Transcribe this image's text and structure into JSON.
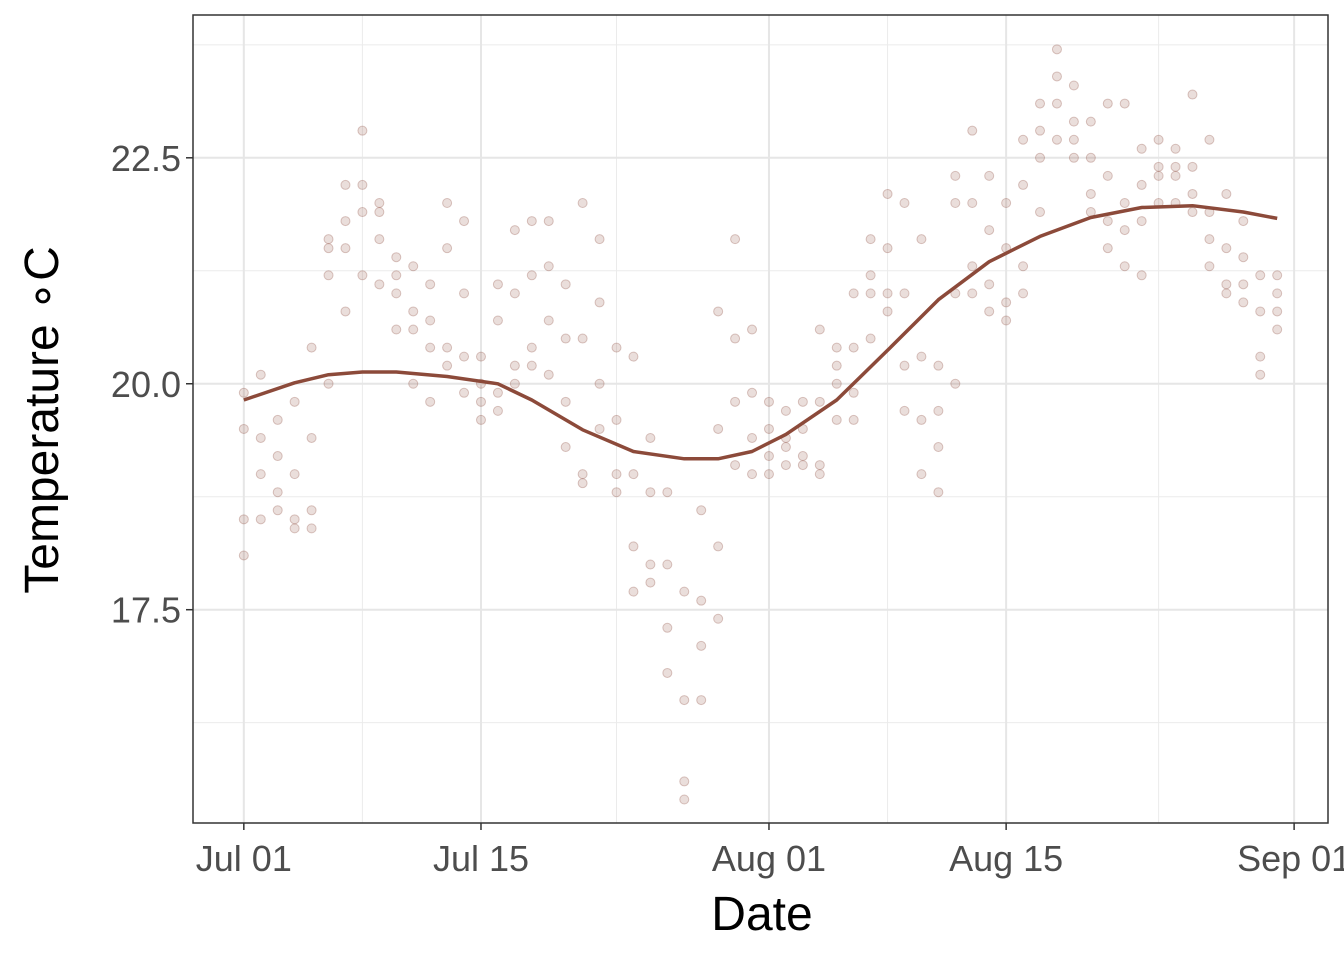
{
  "chart_data": {
    "type": "scatter",
    "x_label": "Date",
    "y_label": "Temperature ∘C",
    "x": [
      "Jul 01",
      "Jul 02",
      "Jul 03",
      "Jul 04",
      "Jul 05",
      "Jul 06",
      "Jul 07",
      "Jul 08",
      "Jul 09",
      "Jul 10",
      "Jul 11",
      "Jul 12",
      "Jul 13",
      "Jul 14",
      "Jul 15",
      "Jul 16",
      "Jul 17",
      "Jul 18",
      "Jul 19",
      "Jul 20",
      "Jul 21",
      "Jul 22",
      "Jul 23",
      "Jul 24",
      "Jul 25",
      "Jul 26",
      "Jul 27",
      "Jul 28",
      "Jul 29",
      "Jul 30",
      "Jul 31",
      "Aug 01",
      "Aug 02",
      "Aug 03",
      "Aug 04",
      "Aug 05",
      "Aug 06",
      "Aug 07",
      "Aug 08",
      "Aug 09",
      "Aug 10",
      "Aug 11",
      "Aug 12",
      "Aug 13",
      "Aug 14",
      "Aug 15",
      "Aug 16",
      "Aug 17",
      "Aug 18",
      "Aug 19",
      "Aug 20",
      "Aug 21",
      "Aug 22",
      "Aug 23",
      "Aug 24",
      "Aug 25",
      "Aug 26",
      "Aug 27",
      "Aug 28",
      "Aug 29",
      "Aug 30",
      "Aug 31"
    ],
    "values": [
      [
        18.1,
        18.5,
        19.5,
        19.9
      ],
      [
        18.5,
        19.0,
        19.4,
        20.1
      ],
      [
        18.6,
        18.8,
        19.2,
        19.6
      ],
      [
        18.4,
        18.5,
        19.0,
        19.8
      ],
      [
        18.4,
        18.6,
        19.4,
        20.4
      ],
      [
        20.0,
        21.2,
        21.5,
        21.6
      ],
      [
        20.8,
        21.5,
        21.8,
        22.2
      ],
      [
        21.2,
        21.9,
        22.2,
        22.8
      ],
      [
        21.1,
        21.6,
        21.9,
        22.0
      ],
      [
        20.6,
        21.0,
        21.2,
        21.4
      ],
      [
        20.0,
        20.6,
        20.8,
        21.3
      ],
      [
        19.8,
        20.4,
        20.7,
        21.1
      ],
      [
        20.2,
        20.4,
        21.5,
        22.0
      ],
      [
        19.9,
        20.3,
        21.0,
        21.8
      ],
      [
        19.6,
        19.8,
        20.0,
        20.3
      ],
      [
        19.7,
        19.9,
        20.7,
        21.1
      ],
      [
        20.0,
        20.2,
        21.0,
        21.7
      ],
      [
        20.2,
        20.4,
        21.2,
        21.8
      ],
      [
        20.1,
        20.7,
        21.3,
        21.8
      ],
      [
        19.3,
        19.8,
        20.5,
        21.1
      ],
      [
        18.9,
        19.0,
        20.5,
        22.0
      ],
      [
        19.5,
        20.0,
        20.9,
        21.6
      ],
      [
        18.8,
        19.0,
        19.6,
        20.4
      ],
      [
        17.7,
        18.2,
        19.0,
        20.3
      ],
      [
        17.8,
        18.0,
        18.8,
        19.4
      ],
      [
        16.8,
        17.3,
        18.0,
        18.8
      ],
      [
        15.4,
        15.6,
        16.5,
        17.7
      ],
      [
        16.5,
        17.1,
        17.6,
        18.6
      ],
      [
        17.4,
        18.2,
        19.5,
        20.8
      ],
      [
        19.1,
        19.8,
        20.5,
        21.6
      ],
      [
        19.0,
        19.4,
        19.9,
        20.6
      ],
      [
        19.0,
        19.2,
        19.5,
        19.8
      ],
      [
        19.1,
        19.3,
        19.4,
        19.7
      ],
      [
        19.1,
        19.2,
        19.5,
        19.8
      ],
      [
        19.0,
        19.1,
        19.8,
        20.6
      ],
      [
        19.6,
        20.0,
        20.2,
        20.4
      ],
      [
        19.6,
        19.9,
        20.4,
        21.0
      ],
      [
        20.5,
        21.0,
        21.2,
        21.6
      ],
      [
        20.8,
        21.0,
        21.5,
        22.1
      ],
      [
        19.7,
        20.2,
        21.0,
        22.0
      ],
      [
        19.0,
        19.6,
        20.3,
        21.6
      ],
      [
        18.8,
        19.3,
        19.7,
        20.2
      ],
      [
        20.0,
        21.0,
        22.0,
        22.3
      ],
      [
        21.0,
        21.3,
        22.0,
        22.8
      ],
      [
        20.8,
        21.1,
        21.7,
        22.3
      ],
      [
        20.7,
        20.9,
        21.5,
        22.0
      ],
      [
        21.0,
        21.3,
        22.2,
        22.7
      ],
      [
        21.9,
        22.5,
        22.8,
        23.1
      ],
      [
        22.7,
        23.1,
        23.4,
        23.7
      ],
      [
        22.5,
        22.7,
        22.9,
        23.3
      ],
      [
        21.9,
        22.1,
        22.5,
        22.9
      ],
      [
        21.5,
        21.8,
        22.3,
        23.1
      ],
      [
        21.3,
        21.7,
        22.0,
        23.1
      ],
      [
        21.2,
        21.8,
        22.2,
        22.6
      ],
      [
        22.0,
        22.3,
        22.4,
        22.7
      ],
      [
        22.0,
        22.3,
        22.4,
        22.6
      ],
      [
        21.9,
        22.1,
        22.4,
        23.2
      ],
      [
        21.3,
        21.6,
        21.9,
        22.7
      ],
      [
        21.0,
        21.1,
        21.5,
        22.1
      ],
      [
        20.9,
        21.1,
        21.4,
        21.8
      ],
      [
        20.1,
        20.3,
        20.8,
        21.2
      ],
      [
        20.6,
        20.8,
        21.0,
        21.2
      ]
    ],
    "color": "#8c4a3a",
    "smooth": {
      "color": "#8c4a3a",
      "x": [
        "Jul 01",
        "Jul 04",
        "Jul 06",
        "Jul 08",
        "Jul 10",
        "Jul 13",
        "Jul 16",
        "Jul 18",
        "Jul 21",
        "Jul 24",
        "Jul 27",
        "Jul 29",
        "Jul 31",
        "Aug 02",
        "Aug 05",
        "Aug 08",
        "Aug 11",
        "Aug 14",
        "Aug 17",
        "Aug 20",
        "Aug 23",
        "Aug 26",
        "Aug 29",
        "Aug 31"
      ],
      "values": [
        19.82,
        20.01,
        20.1,
        20.13,
        20.13,
        20.08,
        20.0,
        19.82,
        19.49,
        19.25,
        19.17,
        19.17,
        19.25,
        19.44,
        19.82,
        20.37,
        20.93,
        21.35,
        21.63,
        21.84,
        21.95,
        21.97,
        21.9,
        21.83
      ]
    },
    "xlim": [
      "Jun 28",
      "Sep 03"
    ],
    "xticks": [
      "Jul 01",
      "Jul 15",
      "Aug 01",
      "Aug 15",
      "Sep 01"
    ],
    "x_minor_ticks": [
      "Jul 08",
      "Jul 23",
      "Aug 08",
      "Aug 24"
    ],
    "ylim": [
      15.14,
      24.08
    ],
    "yticks": [
      17.5,
      {
        "value": 20.0,
        "label": "20.0"
      },
      22.5
    ],
    "y_minor_ticks": [
      16.25,
      18.75,
      21.25,
      23.75
    ],
    "grid": true
  }
}
